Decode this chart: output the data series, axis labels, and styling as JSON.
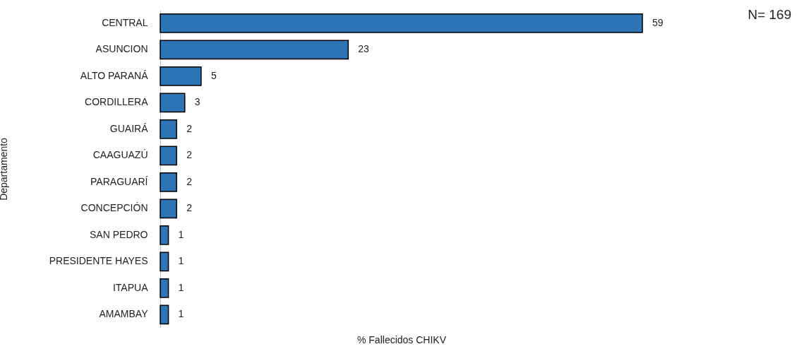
{
  "chart_data": {
    "type": "bar",
    "orientation": "horizontal",
    "xlabel": "% Fallecidos CHIKV",
    "ylabel": "Departamento",
    "categories": [
      "CENTRAL",
      "ASUNCION",
      "ALTO PARANÁ",
      "CORDILLERA",
      "GUAIRÁ",
      "CAAGUAZÚ",
      "PARAGUARÍ",
      "CONCEPCIÓN",
      "SAN PEDRO",
      "PRESIDENTE HAYES",
      "ITAPUA",
      "AMAMBAY"
    ],
    "values": [
      59,
      23,
      5,
      3,
      2,
      2,
      2,
      2,
      1,
      1,
      1,
      1
    ],
    "color": "#2e75b6",
    "xlim": [
      0,
      59
    ],
    "data_labels": true,
    "grid": false,
    "annotations": [
      "N= 169"
    ]
  }
}
